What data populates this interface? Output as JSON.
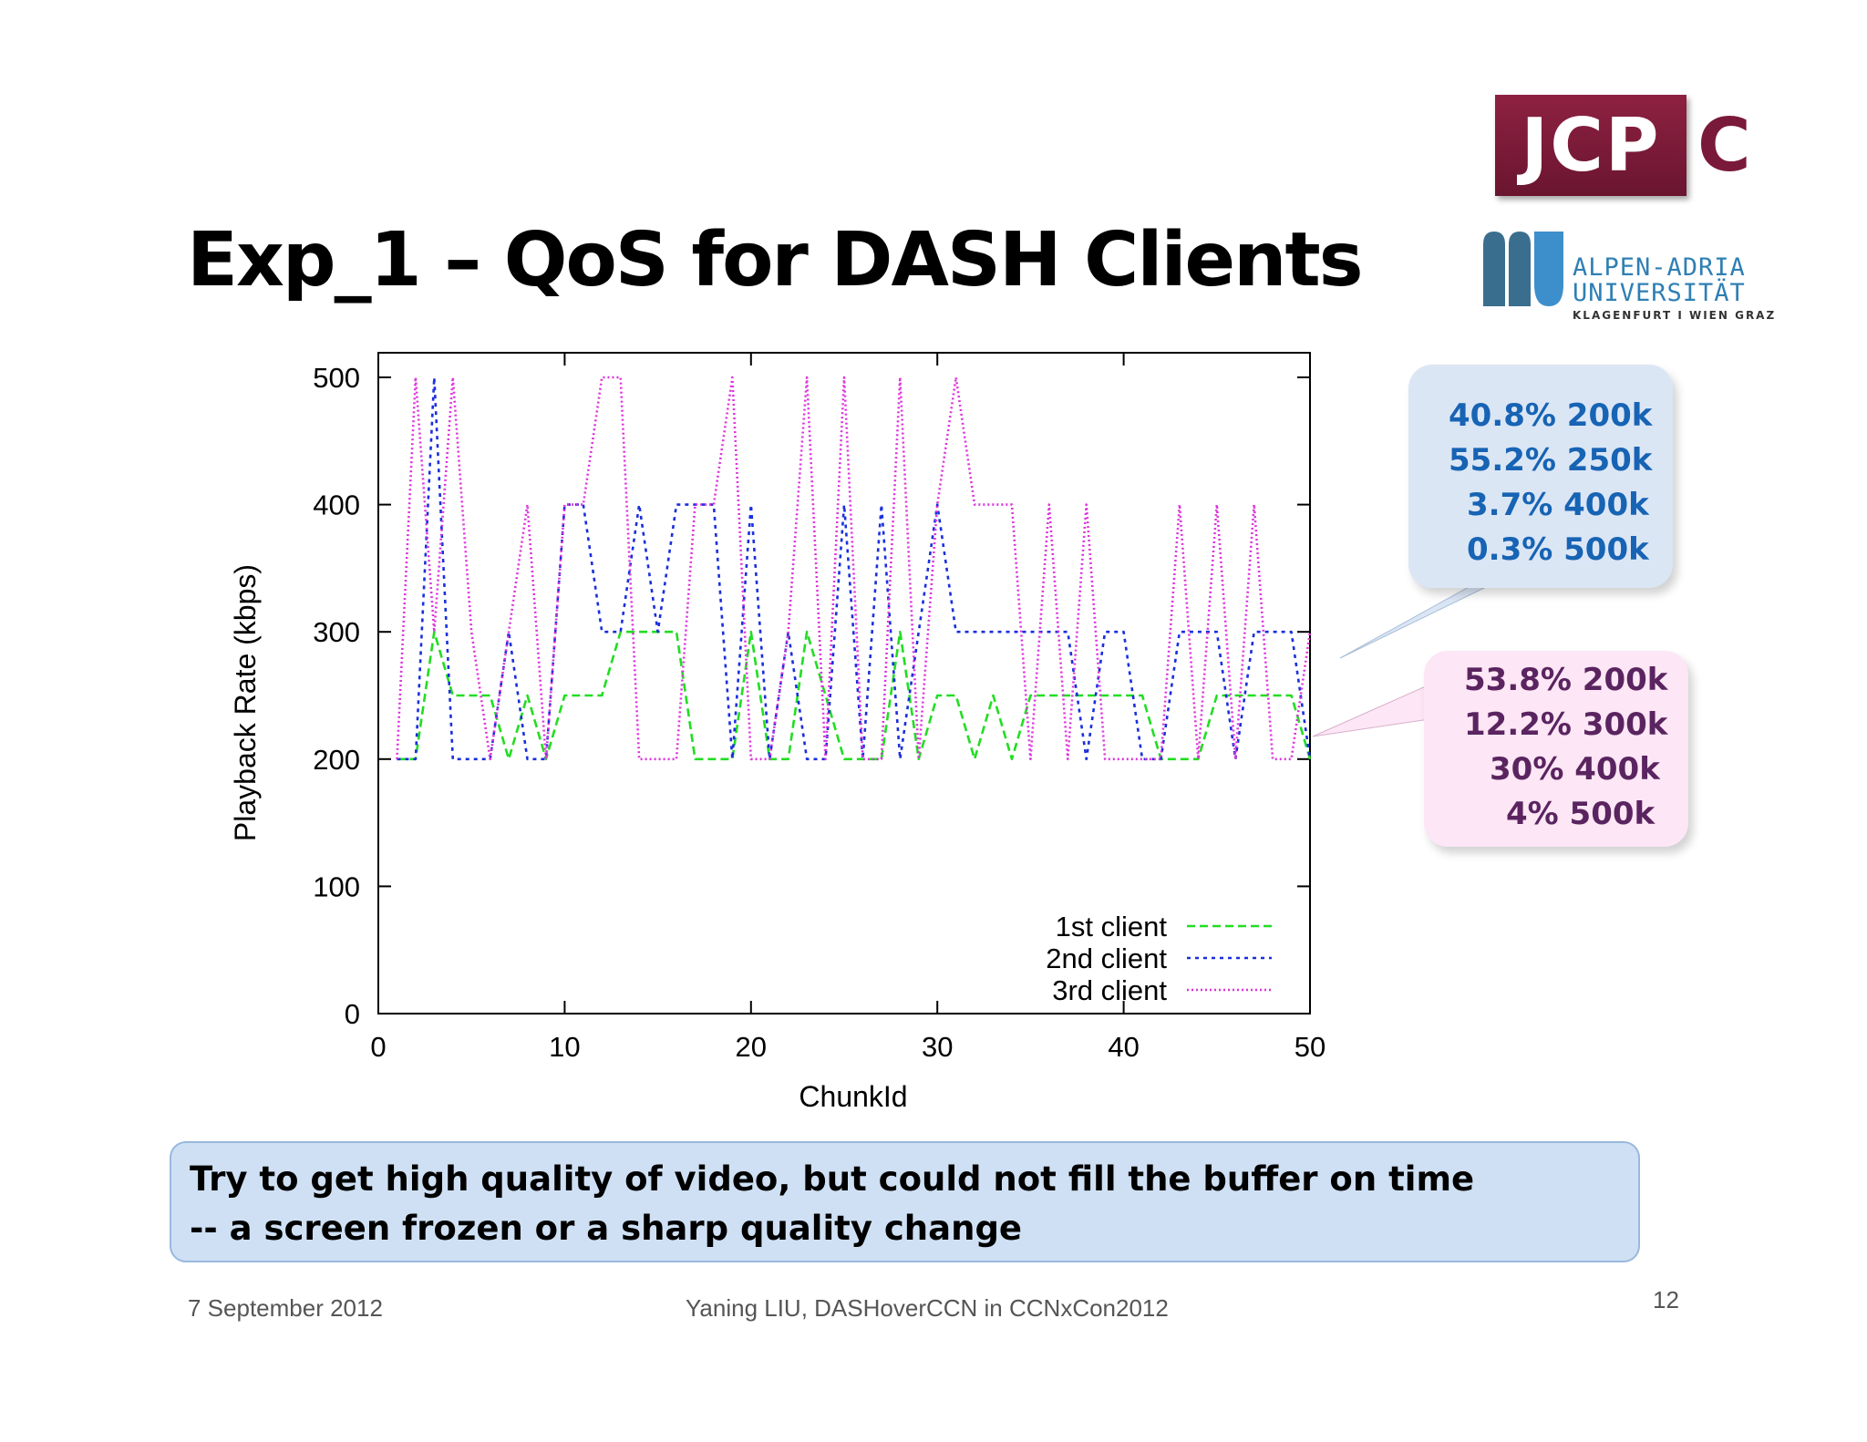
{
  "slide": {
    "title": "Exp_1 – QoS for DASH Clients",
    "logos": {
      "jcpc": {
        "box_text": "JCP",
        "suffix": "C"
      },
      "aau": {
        "line1": "ALPEN-ADRIA",
        "line2": "UNIVERSITÄT",
        "line3": "KLAGENFURT I WIEN GRAZ"
      }
    }
  },
  "chart_data": {
    "type": "line",
    "xlabel": "ChunkId",
    "ylabel": "Playback Rate (kbps)",
    "xlim": [
      0,
      50
    ],
    "ylim": [
      0,
      520
    ],
    "x_ticks": [
      0,
      10,
      20,
      30,
      40,
      50
    ],
    "y_ticks": [
      0,
      100,
      200,
      300,
      400,
      500
    ],
    "grid": false,
    "legend_position": "bottom-right",
    "series": [
      {
        "name": "1st client",
        "color": "#22dd22",
        "style": "dashed",
        "x": [
          1,
          2,
          3,
          4,
          5,
          6,
          7,
          8,
          9,
          10,
          11,
          12,
          13,
          14,
          15,
          16,
          17,
          18,
          19,
          20,
          21,
          22,
          23,
          24,
          25,
          26,
          27,
          28,
          29,
          30,
          31,
          32,
          33,
          34,
          35,
          36,
          37,
          38,
          39,
          40,
          41,
          42,
          43,
          44,
          45,
          46,
          47,
          48,
          49,
          50
        ],
        "values": [
          200,
          200,
          300,
          250,
          250,
          250,
          200,
          250,
          200,
          250,
          250,
          250,
          300,
          300,
          300,
          300,
          200,
          200,
          200,
          300,
          200,
          200,
          300,
          250,
          200,
          200,
          200,
          300,
          200,
          250,
          250,
          200,
          250,
          200,
          250,
          250,
          250,
          250,
          250,
          250,
          250,
          200,
          200,
          200,
          250,
          250,
          250,
          250,
          250,
          200
        ]
      },
      {
        "name": "2nd client",
        "color": "#1a2fdd",
        "style": "dotted",
        "x": [
          1,
          2,
          3,
          4,
          5,
          6,
          7,
          8,
          9,
          10,
          11,
          12,
          13,
          14,
          15,
          16,
          17,
          18,
          19,
          20,
          21,
          22,
          23,
          24,
          25,
          26,
          27,
          28,
          29,
          30,
          31,
          32,
          33,
          34,
          35,
          36,
          37,
          38,
          39,
          40,
          41,
          42,
          43,
          44,
          45,
          46,
          47,
          48,
          49,
          50
        ],
        "values": [
          200,
          200,
          500,
          200,
          200,
          200,
          300,
          200,
          200,
          400,
          400,
          300,
          300,
          400,
          300,
          400,
          400,
          400,
          200,
          400,
          200,
          300,
          200,
          200,
          400,
          200,
          400,
          200,
          300,
          400,
          300,
          300,
          300,
          300,
          300,
          300,
          300,
          200,
          300,
          300,
          200,
          200,
          300,
          300,
          300,
          200,
          300,
          300,
          300,
          200
        ]
      },
      {
        "name": "3rd client",
        "color": "#dd33dd",
        "style": "fine-dotted",
        "x": [
          1,
          2,
          3,
          4,
          5,
          6,
          7,
          8,
          9,
          10,
          11,
          12,
          13,
          14,
          15,
          16,
          17,
          18,
          19,
          20,
          21,
          22,
          23,
          24,
          25,
          26,
          27,
          28,
          29,
          30,
          31,
          32,
          33,
          34,
          35,
          36,
          37,
          38,
          39,
          40,
          41,
          42,
          43,
          44,
          45,
          46,
          47,
          48,
          49,
          50
        ],
        "values": [
          200,
          500,
          300,
          500,
          300,
          200,
          300,
          400,
          200,
          400,
          400,
          500,
          500,
          200,
          200,
          200,
          400,
          400,
          500,
          200,
          200,
          300,
          500,
          200,
          500,
          200,
          200,
          500,
          200,
          400,
          500,
          400,
          400,
          400,
          200,
          400,
          200,
          400,
          200,
          200,
          200,
          200,
          400,
          200,
          400,
          200,
          400,
          200,
          200,
          300
        ]
      }
    ]
  },
  "callouts": [
    {
      "lines": [
        "40.8% 200k",
        "55.2% 250k",
        "3.7% 400k",
        "0.3% 500k"
      ]
    },
    {
      "lines": [
        "53.8% 200k",
        "12.2% 300k",
        "30% 400k",
        "4% 500k"
      ]
    }
  ],
  "note": {
    "line1": "Try to get high quality of video, but could not fill the buffer on time",
    "line2": " -- a screen frozen or a sharp quality change"
  },
  "footer": {
    "date": "7 September 2012",
    "author": "Yaning LIU, DASHoverCCN in CCNxCon2012",
    "page": "12"
  }
}
